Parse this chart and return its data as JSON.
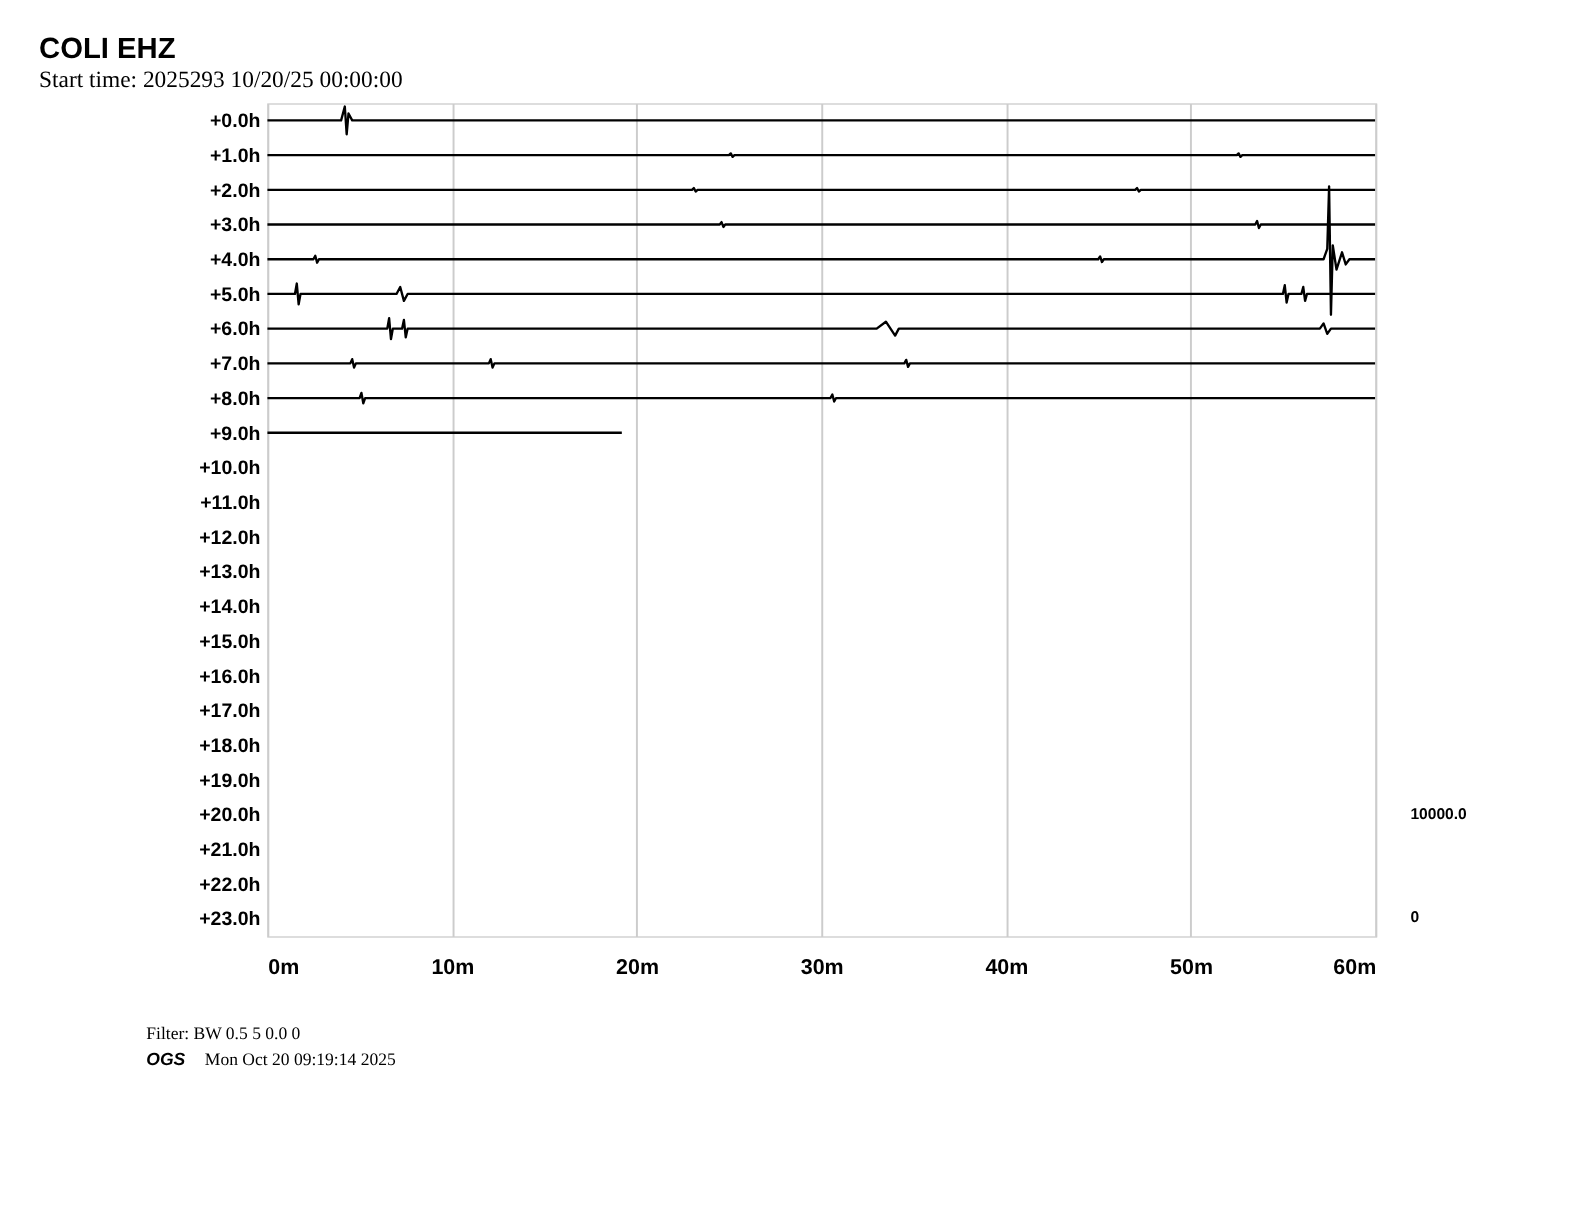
{
  "chart_data": {
    "type": "line",
    "title": "COLI EHZ",
    "subtitle": "Start time: 2025293 10/20/25 00:00:00",
    "xlim": [
      0,
      60
    ],
    "xticks": [
      {
        "value": 0,
        "label": "0m"
      },
      {
        "value": 10,
        "label": "10m"
      },
      {
        "value": 20,
        "label": "20m"
      },
      {
        "value": 30,
        "label": "30m"
      },
      {
        "value": 40,
        "label": "40m"
      },
      {
        "value": 50,
        "label": "50m"
      },
      {
        "value": 60,
        "label": "60m"
      }
    ],
    "ylim": [
      23.5,
      -0.5
    ],
    "yticks": [
      {
        "value": 0,
        "label": "+0.0h"
      },
      {
        "value": 1,
        "label": "+1.0h"
      },
      {
        "value": 2,
        "label": "+2.0h"
      },
      {
        "value": 3,
        "label": "+3.0h"
      },
      {
        "value": 4,
        "label": "+4.0h"
      },
      {
        "value": 5,
        "label": "+5.0h"
      },
      {
        "value": 6,
        "label": "+6.0h"
      },
      {
        "value": 7,
        "label": "+7.0h"
      },
      {
        "value": 8,
        "label": "+8.0h"
      },
      {
        "value": 9,
        "label": "+9.0h"
      },
      {
        "value": 10,
        "label": "+10.0h"
      },
      {
        "value": 11,
        "label": "+11.0h"
      },
      {
        "value": 12,
        "label": "+12.0h"
      },
      {
        "value": 13,
        "label": "+13.0h"
      },
      {
        "value": 14,
        "label": "+14.0h"
      },
      {
        "value": 15,
        "label": "+15.0h"
      },
      {
        "value": 16,
        "label": "+16.0h"
      },
      {
        "value": 17,
        "label": "+17.0h"
      },
      {
        "value": 18,
        "label": "+18.0h"
      },
      {
        "value": 19,
        "label": "+19.0h"
      },
      {
        "value": 20,
        "label": "+20.0h"
      },
      {
        "value": 21,
        "label": "+21.0h"
      },
      {
        "value": 22,
        "label": "+22.0h"
      },
      {
        "value": 23,
        "label": "+23.0h"
      }
    ],
    "grid": "x",
    "legend": false,
    "marker": "none",
    "line_style": "solid",
    "series": [
      {
        "color": "#000000",
        "x": [
          0,
          4.0,
          4.2,
          4.3,
          4.4,
          4.6,
          30,
          60
        ],
        "values": [
          0,
          0,
          -0.4,
          0.4,
          -0.2,
          0,
          0,
          0
        ]
      },
      {
        "color": "#000000",
        "x": [
          0,
          25,
          25.1,
          25.2,
          25.3,
          52.5,
          52.6,
          52.7,
          52.8,
          60
        ],
        "values": [
          1,
          1,
          0.95,
          1.05,
          1,
          1,
          0.95,
          1.05,
          1,
          1
        ]
      },
      {
        "color": "#000000",
        "x": [
          0,
          23,
          23.1,
          23.2,
          23.3,
          47,
          47.1,
          47.2,
          47.3,
          60
        ],
        "values": [
          2,
          2,
          1.95,
          2.05,
          2,
          2,
          1.95,
          2.05,
          2,
          2
        ]
      },
      {
        "color": "#000000",
        "x": [
          0,
          24.5,
          24.6,
          24.7,
          24.8,
          53.5,
          53.6,
          53.7,
          53.8,
          60
        ],
        "values": [
          3,
          3,
          2.93,
          3.07,
          3,
          3,
          2.9,
          3.1,
          3,
          3
        ]
      },
      {
        "color": "#000000",
        "x": [
          0,
          2.5,
          2.6,
          2.7,
          2.8,
          45,
          45.1,
          45.2,
          45.3,
          57.2,
          57.4,
          57.5,
          57.6,
          57.7,
          57.9,
          58.2,
          58.4,
          58.6,
          60
        ],
        "values": [
          4,
          4,
          3.9,
          4.1,
          4,
          4,
          3.92,
          4.08,
          4,
          4,
          3.7,
          1.9,
          5.6,
          3.6,
          4.3,
          3.8,
          4.15,
          4,
          4
        ]
      },
      {
        "color": "#000000",
        "x": [
          0,
          1.5,
          1.6,
          1.7,
          1.8,
          7.0,
          7.2,
          7.4,
          7.6,
          55.0,
          55.1,
          55.2,
          55.3,
          56.0,
          56.1,
          56.2,
          56.3,
          60
        ],
        "values": [
          5,
          5,
          4.7,
          5.3,
          5,
          5,
          4.8,
          5.2,
          5,
          5,
          4.75,
          5.25,
          5,
          5,
          4.8,
          5.2,
          5,
          5
        ]
      },
      {
        "color": "#000000",
        "x": [
          0,
          6.5,
          6.6,
          6.7,
          6.8,
          7.3,
          7.4,
          7.5,
          7.6,
          33.0,
          33.5,
          34.0,
          34.2,
          57,
          57.2,
          57.4,
          57.6,
          60
        ],
        "values": [
          6,
          6,
          5.7,
          6.3,
          6,
          6,
          5.75,
          6.25,
          6,
          6,
          5.8,
          6.2,
          6,
          6,
          5.85,
          6.15,
          6,
          6
        ]
      },
      {
        "color": "#000000",
        "x": [
          0,
          4.5,
          4.6,
          4.7,
          4.8,
          12,
          12.1,
          12.2,
          12.3,
          34.5,
          34.6,
          34.7,
          34.8,
          60
        ],
        "values": [
          7,
          7,
          6.88,
          7.12,
          7,
          7,
          6.88,
          7.12,
          7,
          7,
          6.9,
          7.1,
          7,
          7
        ]
      },
      {
        "color": "#000000",
        "x": [
          0,
          5.0,
          5.1,
          5.2,
          5.3,
          30.5,
          30.6,
          30.7,
          30.8,
          60
        ],
        "values": [
          8,
          8,
          7.85,
          8.15,
          8,
          8,
          7.9,
          8.1,
          8,
          8
        ]
      },
      {
        "color": "#000000",
        "x": [
          0,
          10,
          19.2
        ],
        "values": [
          9,
          9,
          9
        ]
      }
    ],
    "annotations": [
      "10000.0",
      "0",
      "Filter: BW 0.5 5 0.0 0",
      "OGS",
      "Mon Oct 20 09:19:14 2025"
    ]
  }
}
